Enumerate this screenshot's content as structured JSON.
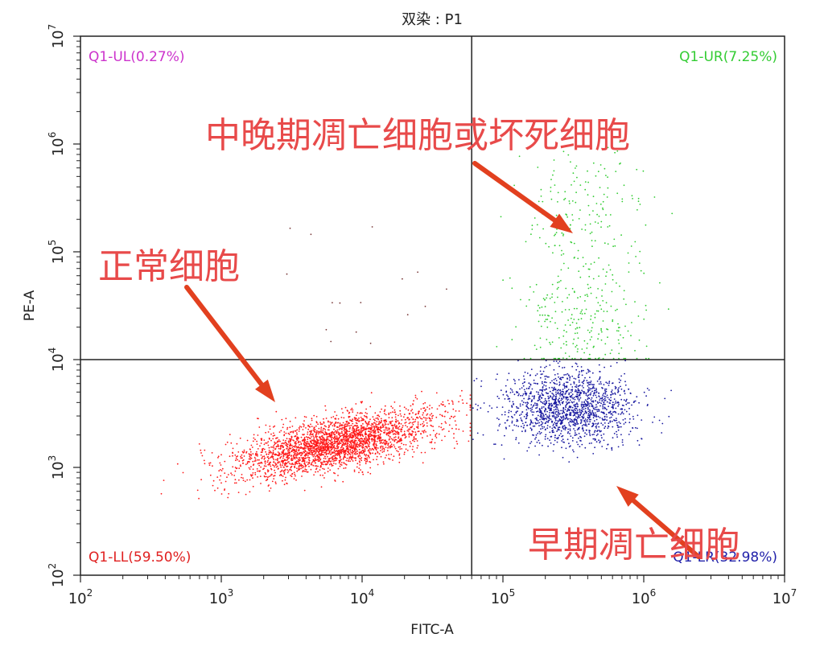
{
  "chart_data": {
    "type": "scatter",
    "title": "双染 : P1",
    "xlabel": "FITC-A",
    "ylabel": "PE-A",
    "x_scale": "log",
    "y_scale": "log",
    "xlim": [
      100,
      10000000
    ],
    "ylim": [
      100,
      10000000
    ],
    "x_ticks": [
      {
        "base": "10",
        "exp": "2"
      },
      {
        "base": "10",
        "exp": "3"
      },
      {
        "base": "10",
        "exp": "4"
      },
      {
        "base": "10",
        "exp": "5"
      },
      {
        "base": "10",
        "exp": "6"
      },
      {
        "base": "10",
        "exp": "7"
      }
    ],
    "y_ticks": [
      {
        "base": "10",
        "exp": "2"
      },
      {
        "base": "10",
        "exp": "3"
      },
      {
        "base": "10",
        "exp": "4"
      },
      {
        "base": "10",
        "exp": "5"
      },
      {
        "base": "10",
        "exp": "6"
      },
      {
        "base": "10",
        "exp": "7"
      }
    ],
    "gate": {
      "x": 60000,
      "y": 10000
    },
    "quadrants": [
      {
        "id": "UL",
        "label": "Q1-UL(0.27%)",
        "percent": 0.27,
        "color": "#cc33cc"
      },
      {
        "id": "UR",
        "label": "Q1-UR(7.25%)",
        "percent": 7.25,
        "color": "#33cc33"
      },
      {
        "id": "LL",
        "label": "Q1-LL(59.50%)",
        "percent": 59.5,
        "color": "#e02020"
      },
      {
        "id": "LR",
        "label": "Q1-LR(32.98%)",
        "percent": 32.98,
        "color": "#2222aa"
      }
    ],
    "point_colors": {
      "UL": "#7a3a3a",
      "UR": "#33cc33",
      "LL": "#ff1a1a",
      "LR": "#1a1aa0"
    },
    "annotations": [
      {
        "text": "中晚期凋亡细胞或坏死细胞",
        "target_quadrant": "UR"
      },
      {
        "text": "正常细胞",
        "target_quadrant": "LL"
      },
      {
        "text": "早期凋亡细胞",
        "target_quadrant": "LR"
      }
    ],
    "annotation_color": "#e84a4a",
    "arrow_color": "#e2401f"
  }
}
